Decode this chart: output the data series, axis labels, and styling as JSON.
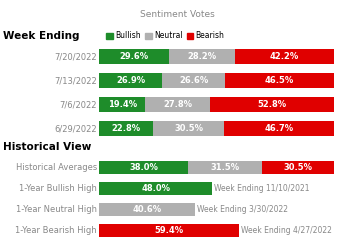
{
  "title": "Sentiment Votes",
  "colors": {
    "bullish": "#1e8c2a",
    "neutral": "#b0b0b0",
    "bearish": "#e00000"
  },
  "week_labels": [
    "7/20/2022",
    "7/13/2022",
    "7/6/2022",
    "6/29/2022"
  ],
  "week_data": [
    [
      29.6,
      28.2,
      42.2
    ],
    [
      26.9,
      26.6,
      46.5
    ],
    [
      19.4,
      27.8,
      52.8
    ],
    [
      22.8,
      30.5,
      46.7
    ]
  ],
  "hist_labels": [
    "Historical Averages",
    "1-Year Bullish High",
    "1-Year Neutral High",
    "1-Year Bearish High"
  ],
  "hist_data": [
    [
      38.0,
      31.5,
      30.5
    ],
    [
      48.0,
      0,
      0
    ],
    [
      0,
      40.6,
      0
    ],
    [
      0,
      0,
      59.4
    ]
  ],
  "hist_annotations": [
    "",
    "Week Ending 11/10/2021",
    "Week Ending 3/30/2022",
    "Week Ending 4/27/2022"
  ],
  "section1_title": "Week Ending",
  "section2_title": "Historical View",
  "background": "#ffffff",
  "label_color": "#888888",
  "week_label_color": "#888888",
  "hist_label_color": "#888888",
  "bar_text_color": "#ffffff",
  "annotation_color": "#888888",
  "title_color": "#888888",
  "section_color": "#000000",
  "bar_height": 0.62,
  "font_size_bar_label": 6.0,
  "font_size_axis_label": 6.0,
  "font_size_title": 6.5,
  "font_size_section": 7.5,
  "font_size_legend": 5.5,
  "font_size_annotation": 5.5
}
